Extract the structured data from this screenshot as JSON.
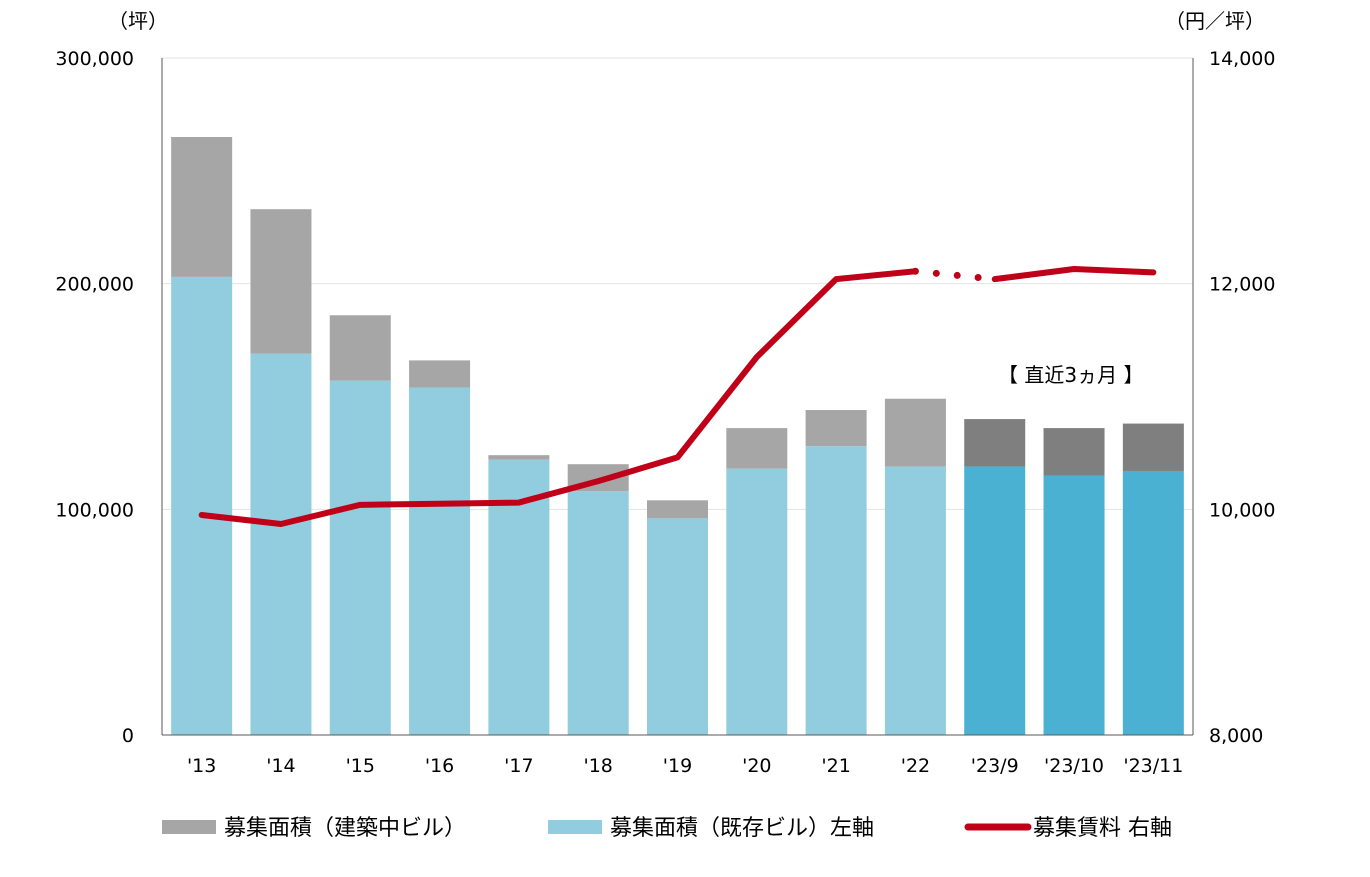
{
  "chart_data": {
    "type": "bar",
    "stacked": true,
    "categories": [
      "'13",
      "'14",
      "'15",
      "'16",
      "'17",
      "'18",
      "'19",
      "'20",
      "'21",
      "'22",
      "'23/9",
      "'23/10",
      "'23/11"
    ],
    "series": [
      {
        "name": "募集面積（既存ビル）左軸",
        "axis": "left",
        "color": "#92CDDF",
        "highlight_color": "#4BB1D2",
        "values": [
          203000,
          169000,
          157000,
          154000,
          122000,
          108000,
          96000,
          118000,
          128000,
          119000,
          119000,
          115000,
          117000
        ]
      },
      {
        "name": "募集面積（建築中ビル）",
        "axis": "left",
        "color": "#A6A6A6",
        "highlight_color": "#7F7F7F",
        "values": [
          62000,
          64000,
          29000,
          12000,
          2000,
          12000,
          8000,
          18000,
          16000,
          30000,
          21000,
          21000,
          21000
        ]
      },
      {
        "name": "募集賃料 右軸",
        "type": "line",
        "axis": "right",
        "color": "#C00018",
        "values": [
          9950,
          9870,
          10040,
          10050,
          10060,
          10250,
          10460,
          11350,
          12040,
          12110,
          12040,
          12130,
          12100
        ]
      }
    ],
    "highlight_from_index": 10,
    "dotted_segment": [
      9,
      10
    ],
    "left_axis": {
      "unit": "（坪）",
      "ylim": [
        0,
        300000
      ],
      "ticks": [
        "0",
        "100,000",
        "200,000",
        "300,000"
      ]
    },
    "right_axis": {
      "unit": "（円／坪）",
      "ylim": [
        8000,
        14000
      ],
      "ticks": [
        "8,000",
        "10,000",
        "12,000",
        "14,000"
      ]
    },
    "annotation": "【 直近3ヵ月 】",
    "grid": true,
    "legend_position": "bottom"
  },
  "legend": [
    {
      "label": "募集面積（建築中ビル）",
      "color": "#A6A6A6",
      "kind": "box"
    },
    {
      "label": "募集面積（既存ビル）左軸",
      "color": "#92CDDF",
      "kind": "box"
    },
    {
      "label": "募集賃料 右軸",
      "color": "#C00018",
      "kind": "line"
    }
  ]
}
